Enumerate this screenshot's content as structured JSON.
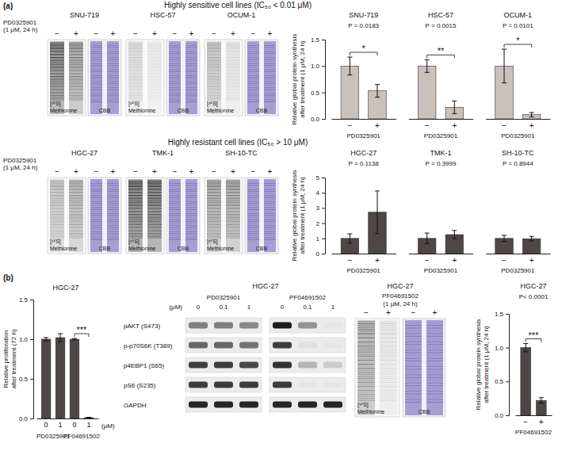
{
  "figure": {
    "panel_a": "(a)",
    "panel_b": "(b)",
    "sensitive_heading": "Highly sensitive cell lines (IC₅₀ < 0.01 μM)",
    "resistant_heading": "Highly resistant cell lines (IC₅₀ > 10 μM)"
  },
  "gel_sets": [
    {
      "treatment": "PD0325901",
      "condition": "(1 μM, 24 h)",
      "lanes": [
        "−",
        "+"
      ],
      "gels": [
        {
          "title": "SNU-719",
          "signal": [
            0.85,
            0.6
          ],
          "label": "[³⁵S]",
          "sublabel": "Methionine",
          "stain": "CBB"
        },
        {
          "title": "HSC-57",
          "signal": [
            0.2,
            0.1
          ],
          "label": "[³⁵S]",
          "sublabel": "Methionine",
          "stain": "CBB"
        },
        {
          "title": "OCUM-1",
          "signal": [
            0.35,
            0.15
          ],
          "label": "[³⁵S]",
          "sublabel": "Methionine",
          "stain": "CBB"
        }
      ]
    },
    {
      "treatment": "PD0325901",
      "condition": "(1 μM, 24 h)",
      "lanes": [
        "−",
        "+"
      ],
      "gels": [
        {
          "title": "HGC-27",
          "signal": [
            0.35,
            0.45
          ],
          "label": "[³⁵S]",
          "sublabel": "Methionine",
          "stain": "CBB"
        },
        {
          "title": "TMK-1",
          "signal": [
            0.9,
            0.9
          ],
          "label": "[³⁵S]",
          "sublabel": "Methionine",
          "stain": "CBB"
        },
        {
          "title": "SH-10-TC",
          "signal": [
            0.55,
            0.55
          ],
          "label": "[³⁵S]",
          "sublabel": "Methionine",
          "stain": "CBB"
        }
      ]
    },
    {
      "treatment": "PF04691502",
      "condition": "(1 μM, 24 h)",
      "lanes": [
        "−",
        "+"
      ],
      "gels": [
        {
          "title": "HGC-27",
          "signal": [
            0.6,
            0.15
          ],
          "label": "[³⁵S]",
          "sublabel": "Methionine",
          "stain": "CBB"
        }
      ]
    }
  ],
  "blot": {
    "title": "HGC-27",
    "unit": "(μM)",
    "groups": [
      {
        "label": "PD0325901",
        "doses": [
          "0",
          "0.1",
          "1"
        ]
      },
      {
        "label": "PF04691502",
        "doses": [
          "0",
          "0.1",
          "1"
        ]
      }
    ],
    "rows": [
      {
        "label": "pAKT (S473)",
        "bands": [
          0.5,
          0.5,
          0.45,
          0.95,
          0.4,
          0.02
        ]
      },
      {
        "label": "p-p70S6K (T389)",
        "bands": [
          0.6,
          0.6,
          0.55,
          0.8,
          0.05,
          0.02
        ]
      },
      {
        "label": "p4EBP1 (S65)",
        "bands": [
          0.8,
          0.8,
          0.75,
          0.85,
          0.25,
          0.15
        ]
      },
      {
        "label": "pS6 (S235)",
        "bands": [
          0.8,
          0.8,
          0.8,
          0.8,
          0.02,
          0.02
        ]
      },
      {
        "label": "GAPDH",
        "bands": [
          0.9,
          0.9,
          0.9,
          0.9,
          0.9,
          0.9
        ]
      }
    ]
  },
  "chart_data": [
    {
      "type": "bar",
      "ylabel": [
        "Relative global protein synthesis",
        "after treatment (1 μM, 24 h)"
      ],
      "ylim": [
        0,
        1.5
      ],
      "yticks": [
        {
          "value": 0,
          "label": "0.0"
        },
        {
          "value": 0.5,
          "label": "0.5"
        },
        {
          "value": 1,
          "label": "1.0"
        },
        {
          "value": 1.5,
          "label": "1.5"
        }
      ],
      "xlabel": "PD0325901",
      "categories": [
        "−",
        "+"
      ],
      "color": "#cbc1bb",
      "panels": [
        {
          "title": "SNU-719",
          "p_label": "P = 0.0183",
          "significance": "*",
          "values": [
            1.0,
            0.53
          ],
          "errors": [
            0.17,
            0.12
          ]
        },
        {
          "title": "HSC-57",
          "p_label": "P = 0.0015",
          "significance": "**",
          "values": [
            1.0,
            0.22
          ],
          "errors": [
            0.12,
            0.12
          ]
        },
        {
          "title": "OCUM-1",
          "p_label": "P = 0.0101",
          "significance": "*",
          "values": [
            1.0,
            0.08
          ],
          "errors": [
            0.32,
            0.04
          ]
        }
      ]
    },
    {
      "type": "bar",
      "ylabel": [
        "Relative global protein synthesis",
        "after treatment (1 μM, 24 h)"
      ],
      "ylim": [
        0,
        5
      ],
      "yticks": [
        0,
        1,
        2,
        3,
        4,
        5
      ],
      "xlabel": "PD0325901",
      "categories": [
        "−",
        "+"
      ],
      "color": "#4f4646",
      "panels": [
        {
          "title": "HGC-27",
          "p_label": "P = 0.1138",
          "values": [
            1.0,
            2.72
          ],
          "errors": [
            0.3,
            1.4
          ]
        },
        {
          "title": "TMK-1",
          "p_label": "P = 0.3999",
          "values": [
            1.0,
            1.25
          ],
          "errors": [
            0.35,
            0.27
          ]
        },
        {
          "title": "SH-10-TC",
          "p_label": "P = 0.8944",
          "values": [
            1.0,
            0.98
          ],
          "errors": [
            0.2,
            0.15
          ]
        }
      ]
    },
    {
      "type": "bar",
      "title": "HGC-27",
      "ylabel": [
        "Relative proliferation",
        "after treatment (72 h)"
      ],
      "ylim": [
        0,
        1.5
      ],
      "yticks": [
        {
          "value": 0,
          "label": "0.0"
        },
        {
          "value": 0.5,
          "label": "0.5"
        },
        {
          "value": 1,
          "label": "1.0"
        },
        {
          "value": 1.5,
          "label": "1.5"
        }
      ],
      "categories": [
        "0",
        "1",
        "0",
        "1"
      ],
      "unit": "(μM)",
      "group_labels": [
        "PD0325901",
        "PF04691502"
      ],
      "color": "#4f4646",
      "values": [
        1.0,
        1.02,
        1.0,
        0.01
      ],
      "errors": [
        0.02,
        0.05,
        0.01,
        0.005
      ],
      "significance": {
        "label": "***",
        "between": [
          2,
          3
        ]
      }
    },
    {
      "type": "bar",
      "ylabel": [
        "Relative global protein synthesis",
        "after treatment (1 μM, 24 h)"
      ],
      "ylim": [
        0,
        1.5
      ],
      "yticks": [
        {
          "value": 0,
          "label": "0.0"
        },
        {
          "value": 0.5,
          "label": "0.5"
        },
        {
          "value": 1,
          "label": "1.0"
        },
        {
          "value": 1.5,
          "label": "1.5"
        }
      ],
      "xlabel": "PF04691502",
      "categories": [
        "−",
        "+"
      ],
      "color": "#4f4646",
      "panels": [
        {
          "title": "HGC-27",
          "p_label": "P< 0.0001",
          "significance": "***",
          "values": [
            1.0,
            0.22
          ],
          "errors": [
            0.06,
            0.04
          ]
        }
      ]
    }
  ]
}
